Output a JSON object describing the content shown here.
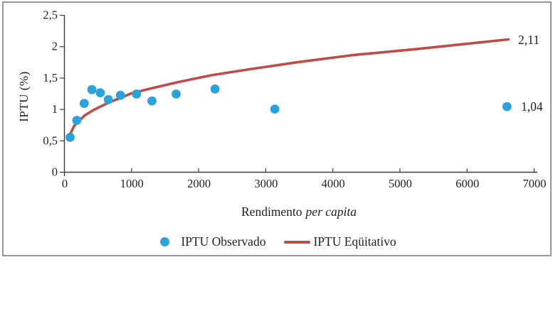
{
  "figure": {
    "border_color": "#969696",
    "background_color": "#ffffff",
    "text_color": "#1f1f1f"
  },
  "chart_data": {
    "type": "scatter",
    "title": "",
    "ylabel": "IPTU (%)",
    "xlabel_regular": "Rendimento",
    "xlabel_italic": "per capita",
    "xlim": [
      0,
      7000
    ],
    "ylim": [
      0,
      2.5
    ],
    "grid": false,
    "legend_position": "bottom-center",
    "x_ticks": [
      {
        "v": 0,
        "label": "0"
      },
      {
        "v": 1000,
        "label": "1000"
      },
      {
        "v": 2000,
        "label": "2000"
      },
      {
        "v": 3000,
        "label": "3000"
      },
      {
        "v": 4000,
        "label": "4000"
      },
      {
        "v": 5000,
        "label": "5000"
      },
      {
        "v": 6000,
        "label": "6000"
      },
      {
        "v": 7000,
        "label": "7000"
      }
    ],
    "y_ticks": [
      {
        "v": 0,
        "label": "0"
      },
      {
        "v": 0.5,
        "label": "0,5"
      },
      {
        "v": 1,
        "label": "1"
      },
      {
        "v": 1.5,
        "label": "1,5"
      },
      {
        "v": 2,
        "label": "2"
      },
      {
        "v": 2.5,
        "label": "2,5"
      }
    ],
    "series": [
      {
        "name": "IPTU Observado",
        "type": "scatter",
        "marker": "circle",
        "color": "#29a3dc",
        "points": [
          [
            90,
            0.55
          ],
          [
            190,
            0.82
          ],
          [
            300,
            1.09
          ],
          [
            415,
            1.31
          ],
          [
            540,
            1.26
          ],
          [
            660,
            1.15
          ],
          [
            840,
            1.22
          ],
          [
            1080,
            1.24
          ],
          [
            1310,
            1.13
          ],
          [
            1670,
            1.24
          ],
          [
            2250,
            1.32
          ],
          [
            3140,
            1.0
          ],
          [
            6600,
            1.04
          ]
        ]
      },
      {
        "name": "IPTU Eqüitativo",
        "type": "line",
        "color": "#bf4b47",
        "points": [
          [
            90,
            0.6
          ],
          [
            150,
            0.73
          ],
          [
            220,
            0.81
          ],
          [
            310,
            0.9
          ],
          [
            430,
            0.98
          ],
          [
            560,
            1.05
          ],
          [
            700,
            1.12
          ],
          [
            850,
            1.18
          ],
          [
            1000,
            1.25
          ],
          [
            1300,
            1.33
          ],
          [
            1700,
            1.43
          ],
          [
            2200,
            1.54
          ],
          [
            2800,
            1.64
          ],
          [
            3500,
            1.75
          ],
          [
            4300,
            1.86
          ],
          [
            5200,
            1.95
          ],
          [
            6000,
            2.04
          ],
          [
            6620,
            2.11
          ]
        ]
      }
    ],
    "annotations": [
      {
        "text": "2,11",
        "series": "IPTU Eqüitativo",
        "x": 6620,
        "y": 2.11
      },
      {
        "text": "1,04",
        "series": "IPTU Observado",
        "x": 6600,
        "y": 1.04
      }
    ]
  }
}
